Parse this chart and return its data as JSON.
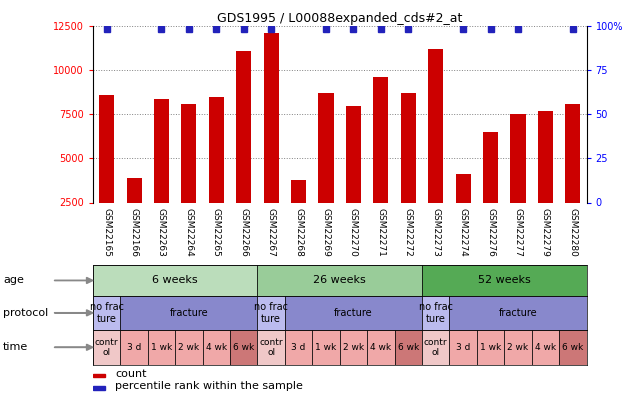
{
  "title": "GDS1995 / L00088expanded_cds#2_at",
  "samples": [
    "GSM22165",
    "GSM22166",
    "GSM22263",
    "GSM22264",
    "GSM22265",
    "GSM22266",
    "GSM22267",
    "GSM22268",
    "GSM22269",
    "GSM22270",
    "GSM22271",
    "GSM22272",
    "GSM22273",
    "GSM22274",
    "GSM22276",
    "GSM22277",
    "GSM22279",
    "GSM22280"
  ],
  "bar_values": [
    8600,
    3900,
    8400,
    8100,
    8500,
    11100,
    12100,
    3800,
    8700,
    8000,
    9600,
    8700,
    11200,
    4100,
    6500,
    7500,
    7700,
    8100
  ],
  "dot_on": [
    1,
    0,
    1,
    1,
    1,
    1,
    1,
    0,
    1,
    1,
    1,
    1,
    0,
    1,
    1,
    1,
    0,
    1
  ],
  "ylim_left": [
    2500,
    12500
  ],
  "ylim_right": [
    0,
    100
  ],
  "yticks_left": [
    2500,
    5000,
    7500,
    10000,
    12500
  ],
  "yticks_right": [
    0,
    25,
    50,
    75,
    100
  ],
  "bar_color": "#cc0000",
  "dot_color": "#2222bb",
  "xlabel_bg": "#d0d0d0",
  "age_groups": [
    {
      "label": "6 weeks",
      "start": 0,
      "end": 6,
      "color": "#bbddbb"
    },
    {
      "label": "26 weeks",
      "start": 6,
      "end": 12,
      "color": "#99cc99"
    },
    {
      "label": "52 weeks",
      "start": 12,
      "end": 18,
      "color": "#55aa55"
    }
  ],
  "protocol_groups": [
    {
      "label": "no frac\nture",
      "start": 0,
      "end": 1,
      "color": "#bbbbee"
    },
    {
      "label": "fracture",
      "start": 1,
      "end": 6,
      "color": "#8888cc"
    },
    {
      "label": "no frac\nture",
      "start": 6,
      "end": 7,
      "color": "#bbbbee"
    },
    {
      "label": "fracture",
      "start": 7,
      "end": 12,
      "color": "#8888cc"
    },
    {
      "label": "no frac\nture",
      "start": 12,
      "end": 13,
      "color": "#bbbbee"
    },
    {
      "label": "fracture",
      "start": 13,
      "end": 18,
      "color": "#8888cc"
    }
  ],
  "time_groups": [
    {
      "label": "contr\nol",
      "start": 0,
      "end": 1,
      "color": "#f0c8c8"
    },
    {
      "label": "3 d",
      "start": 1,
      "end": 2,
      "color": "#f0a8a8"
    },
    {
      "label": "1 wk",
      "start": 2,
      "end": 3,
      "color": "#f0a8a8"
    },
    {
      "label": "2 wk",
      "start": 3,
      "end": 4,
      "color": "#f0a8a8"
    },
    {
      "label": "4 wk",
      "start": 4,
      "end": 5,
      "color": "#f0a8a8"
    },
    {
      "label": "6 wk",
      "start": 5,
      "end": 6,
      "color": "#cc7777"
    },
    {
      "label": "contr\nol",
      "start": 6,
      "end": 7,
      "color": "#f0c8c8"
    },
    {
      "label": "3 d",
      "start": 7,
      "end": 8,
      "color": "#f0a8a8"
    },
    {
      "label": "1 wk",
      "start": 8,
      "end": 9,
      "color": "#f0a8a8"
    },
    {
      "label": "2 wk",
      "start": 9,
      "end": 10,
      "color": "#f0a8a8"
    },
    {
      "label": "4 wk",
      "start": 10,
      "end": 11,
      "color": "#f0a8a8"
    },
    {
      "label": "6 wk",
      "start": 11,
      "end": 12,
      "color": "#cc7777"
    },
    {
      "label": "contr\nol",
      "start": 12,
      "end": 13,
      "color": "#f0c8c8"
    },
    {
      "label": "3 d",
      "start": 13,
      "end": 14,
      "color": "#f0a8a8"
    },
    {
      "label": "1 wk",
      "start": 14,
      "end": 15,
      "color": "#f0a8a8"
    },
    {
      "label": "2 wk",
      "start": 15,
      "end": 16,
      "color": "#f0a8a8"
    },
    {
      "label": "4 wk",
      "start": 16,
      "end": 17,
      "color": "#f0a8a8"
    },
    {
      "label": "6 wk",
      "start": 17,
      "end": 18,
      "color": "#cc7777"
    }
  ],
  "row_labels": [
    "age",
    "protocol",
    "time"
  ],
  "legend_items": [
    {
      "label": "count",
      "color": "#cc0000"
    },
    {
      "label": "percentile rank within the sample",
      "color": "#2222bb"
    }
  ]
}
